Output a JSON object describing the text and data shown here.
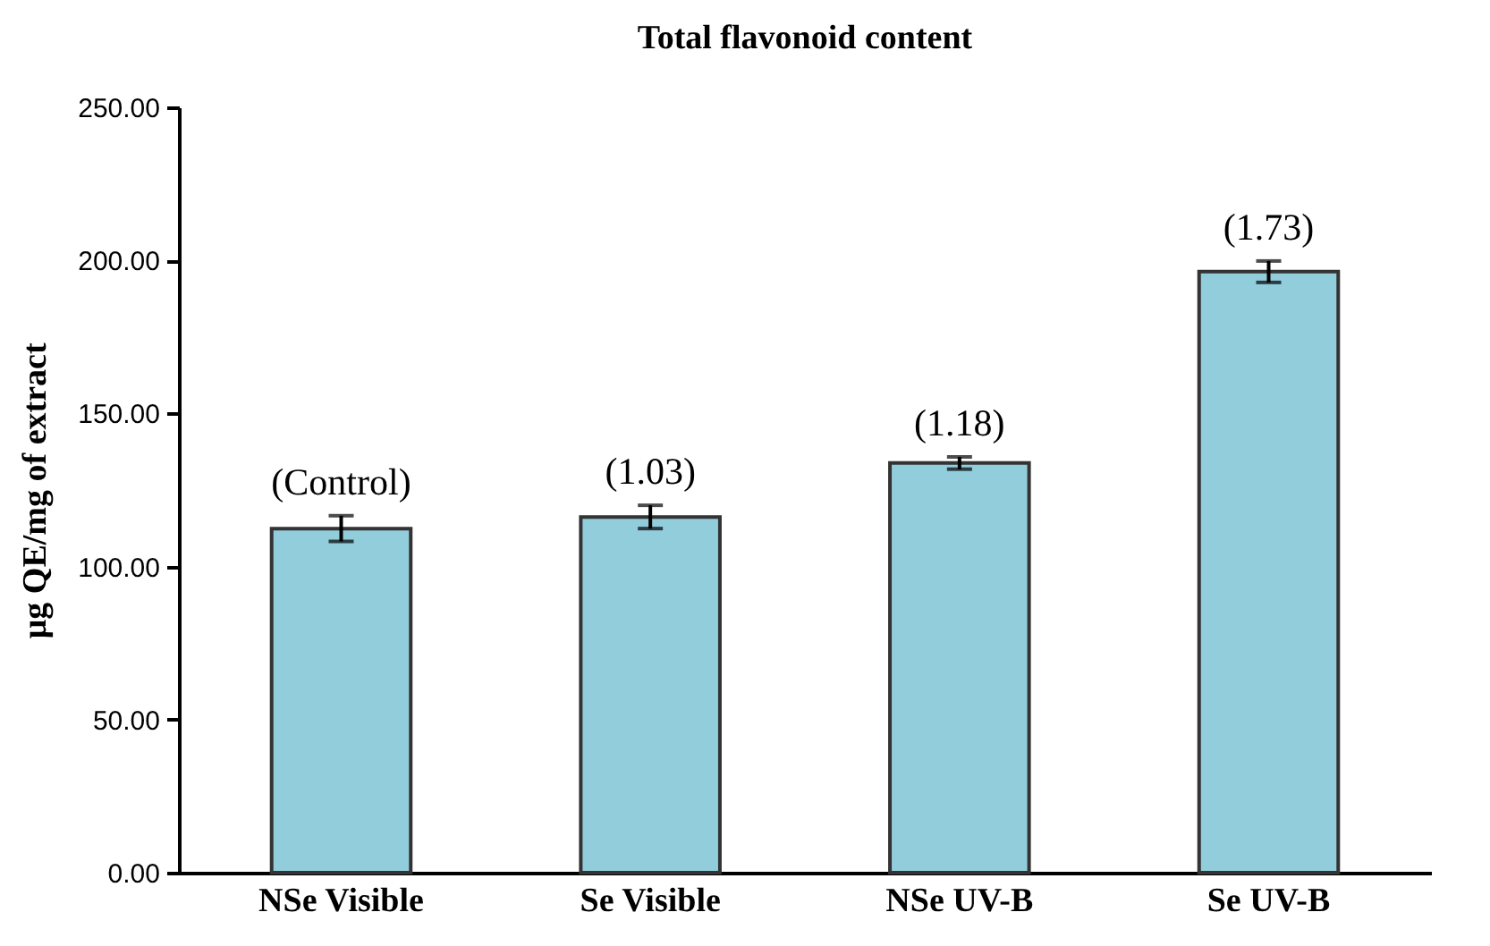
{
  "chart_data": {
    "type": "bar",
    "title": "Total flavonoid  content",
    "ylabel": "µg QE/mg of extract",
    "categories": [
      "NSe Visible",
      "Se Visible",
      "NSe UV-B",
      "Se UV-B"
    ],
    "values": [
      112.4,
      116.2,
      133.8,
      196.3
    ],
    "errors": [
      4.2,
      3.8,
      2.0,
      3.5
    ],
    "color": "#92cddc",
    "ylim": [
      0,
      250
    ],
    "yticks": [
      {
        "value": 0,
        "label": "0.00"
      },
      {
        "value": 50,
        "label": "50.00"
      },
      {
        "value": 100,
        "label": "100.00"
      },
      {
        "value": 150,
        "label": "150.00"
      },
      {
        "value": 200,
        "label": "200.00"
      },
      {
        "value": 250,
        "label": "250.00"
      }
    ],
    "annotations": [
      {
        "text": "(Control)",
        "x": "NSe Visible",
        "y": 116.6
      },
      {
        "text": "(1.03)",
        "x": "Se Visible",
        "y": 120.0
      },
      {
        "text": "(1.18)",
        "x": "NSe UV-B",
        "y": 135.8
      },
      {
        "text": "(1.73)",
        "x": "Se UV-B",
        "y": 199.8
      }
    ]
  }
}
